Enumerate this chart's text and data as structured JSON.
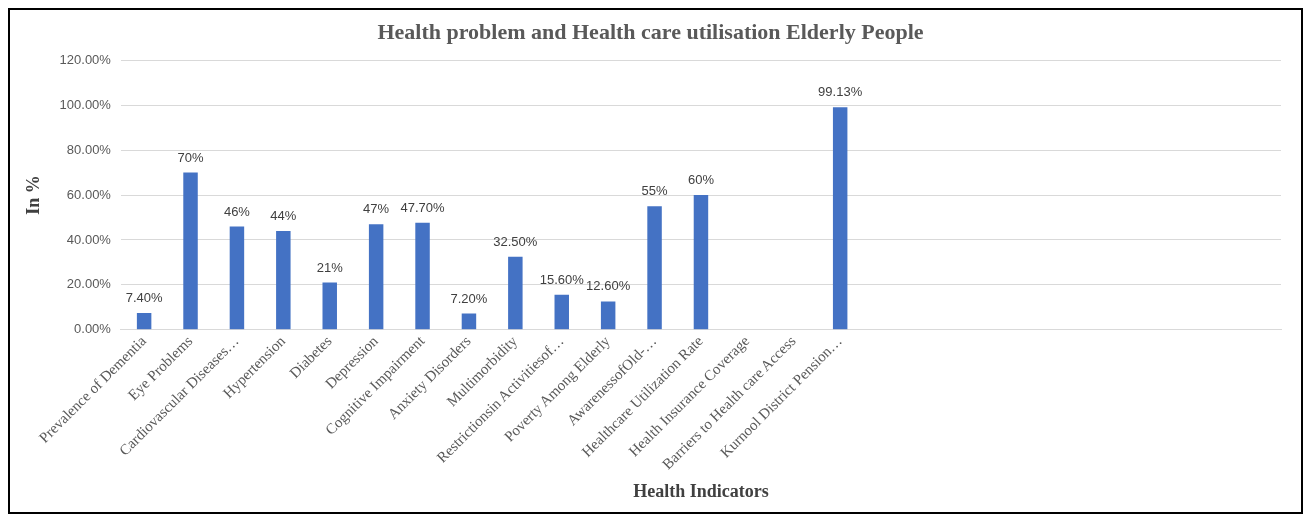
{
  "chart_data": {
    "type": "bar",
    "title": "Health problem and Health care utilisation Elderly People",
    "xlabel": "Health Indicators",
    "ylabel": "In %",
    "categories": [
      "Prevalence of Dementia",
      "Eye Problems",
      "Cardiovascular Diseases…",
      "Hypertension",
      "Diabetes",
      "Depression",
      "Cognitive Impairment",
      "Anxiety Disorders",
      "Multimorbidity",
      "Restrictionsin Activitiesof…",
      "Poverty Among Elderly",
      "AwarenessofOld-…",
      "Healthcare Utilization Rate",
      "Health Insurance Coverage",
      "Barriers to Health care Access",
      "Kurnool District Pension…",
      null,
      null,
      null,
      null,
      null,
      null,
      null,
      null,
      null
    ],
    "values": [
      7.4,
      70,
      46,
      44,
      21,
      47,
      47.7,
      7.2,
      32.5,
      15.6,
      12.6,
      55,
      60,
      null,
      null,
      99.13,
      null,
      null,
      null,
      null,
      null,
      null,
      null,
      null,
      null
    ],
    "value_labels": [
      "7.40%",
      "70%",
      "46%",
      "44%",
      "21%",
      "47%",
      "47.70%",
      "7.20%",
      "32.50%",
      "15.60%",
      "12.60%",
      "55%",
      "60%",
      null,
      null,
      "99.13%",
      null,
      null,
      null,
      null,
      null,
      null,
      null,
      null,
      null
    ],
    "color": "#4472c4",
    "ylim": [
      0,
      120
    ],
    "yticks": [
      {
        "value": 0,
        "label": "0.00%"
      },
      {
        "value": 20,
        "label": "20.00%"
      },
      {
        "value": 40,
        "label": "40.00%"
      },
      {
        "value": 60,
        "label": "60.00%"
      },
      {
        "value": 80,
        "label": "80.00%"
      },
      {
        "value": 100,
        "label": "100.00%"
      },
      {
        "value": 120,
        "label": "120.00%"
      }
    ],
    "grid": "y",
    "legend": false
  }
}
